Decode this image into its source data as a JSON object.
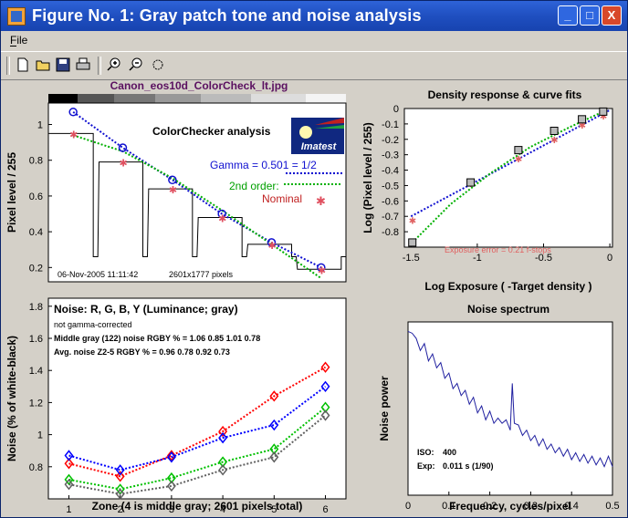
{
  "window": {
    "title": "Figure No. 1: Gray patch tone and noise analysis",
    "buttons": {
      "minimize": "_",
      "maximize": "□",
      "close": "X"
    }
  },
  "menu": {
    "file": "File"
  },
  "toolbar": {
    "icons": [
      "new-icon",
      "open-icon",
      "save-icon",
      "print-icon",
      "zoom-in-icon",
      "zoom-out-icon",
      "rotate-icon"
    ]
  },
  "tone_plot": {
    "image_title": "Canon_eos10d_ColorCheck_lt.jpg",
    "heading": "ColorChecker analysis",
    "logo_text": "Imatest",
    "gamma_label": "Gamma = 0.501 = 1/2",
    "second_order_label": "2nd order:",
    "nominal_label": "Nominal",
    "ylabel": "Pixel level / 255",
    "yticks": [
      "1",
      "0.8",
      "0.6",
      "0.4",
      "0.2"
    ],
    "footer_date": "06-Nov-2005 11:11:42",
    "footer_pixels": "2601x1777 pixels"
  },
  "noise_plot": {
    "heading": "Noise: R, G, B, Y (Luminance; gray)",
    "note": "not gamma-corrected",
    "line1": "Middle gray (122) noise RGBY % = 1.06  0.85  1.01  0.78",
    "line2": "Avg. noise Z2-5 RGBY % = 0.96  0.78  0.92  0.73",
    "ylabel": "Noise (% of white-black)",
    "xlabel": "Zone  (4 is middle gray;  2601 pixels total)",
    "yticks": [
      "1.8",
      "1.6",
      "1.4",
      "1.2",
      "1",
      "0.8"
    ],
    "xticks": [
      "1",
      "2",
      "3",
      "4",
      "5",
      "6"
    ]
  },
  "density_plot": {
    "title": "Density response & curve fits",
    "xlabel": "Log Exposure ( -Target density )",
    "ylabel": "Log (Pixel level / 255)",
    "annotation": "Exposure error = 0.21 f-stops",
    "xticks": [
      "-1.5",
      "-1",
      "-0.5",
      "0"
    ],
    "yticks": [
      "0",
      "-0.1",
      "-0.2",
      "-0.3",
      "-0.4",
      "-0.5",
      "-0.6",
      "-0.7",
      "-0.8"
    ]
  },
  "spectrum_plot": {
    "title": "Noise spectrum",
    "xlabel": "Frequency, cycles/pixel",
    "ylabel": "Noise power",
    "iso_label": "ISO:",
    "iso_value": "400",
    "exp_label": "Exp:",
    "exp_value": "0.011 s  (1/90)",
    "xticks": [
      "0",
      "0.1",
      "0.2",
      "0.3",
      "0.4",
      "0.5"
    ]
  },
  "chart_data": [
    {
      "type": "line",
      "title": "",
      "xlabel": "",
      "ylabel": "Pixel level / 255",
      "ylim": [
        0.12,
        1.12
      ],
      "series": [
        {
          "name": "Gamma = 0.501 = 1/2",
          "x": [
            1,
            2,
            3,
            4,
            5,
            6
          ],
          "values": [
            1.07,
            0.87,
            0.69,
            0.5,
            0.34,
            0.2
          ]
        },
        {
          "name": "2nd order:",
          "x": [
            1,
            2,
            3,
            4,
            5,
            6
          ],
          "values": [
            0.94,
            0.85,
            0.7,
            0.52,
            0.33,
            0.14
          ]
        },
        {
          "name": "Nominal",
          "x": [
            1,
            2,
            3,
            4,
            5,
            6
          ],
          "values": [
            0.95,
            0.79,
            0.64,
            0.48,
            0.33,
            0.19
          ]
        }
      ]
    },
    {
      "type": "line",
      "title": "",
      "xlabel": "Zone  (4 is middle gray;  2601 pixels total)",
      "ylabel": "Noise (% of white-black)",
      "x": [
        1,
        2,
        3,
        4,
        5,
        6
      ],
      "ylim": [
        0.6,
        1.85
      ],
      "colors": [
        "#ff0000",
        "#00c000",
        "#0000ff",
        "#606060"
      ],
      "series": [
        {
          "values": [
            0.82,
            0.74,
            0.87,
            1.02,
            1.24,
            1.42
          ]
        },
        {
          "values": [
            0.72,
            0.66,
            0.73,
            0.83,
            0.91,
            1.17
          ]
        },
        {
          "values": [
            0.87,
            0.78,
            0.86,
            0.98,
            1.06,
            1.3
          ]
        },
        {
          "values": [
            0.69,
            0.63,
            0.68,
            0.78,
            0.86,
            1.12
          ]
        }
      ]
    },
    {
      "type": "scatter",
      "title": "Density response & curve fits",
      "xlabel": "Log Exposure ( -Target density )",
      "ylabel": "Log (Pixel level / 255)",
      "xlim": [
        -1.5,
        0
      ],
      "ylim": [
        -0.9,
        0
      ],
      "points": {
        "x": [
          -1.49,
          -1.05,
          -0.69,
          -0.42,
          -0.21,
          -0.05
        ],
        "y": [
          -0.87,
          -0.48,
          -0.27,
          -0.145,
          -0.07,
          -0.02
        ]
      },
      "nominal": {
        "x": [
          -1.49,
          -1.05,
          -0.69,
          -0.42,
          -0.21,
          -0.05
        ],
        "y": [
          -0.72,
          -0.48,
          -0.32,
          -0.195,
          -0.1,
          -0.04
        ]
      },
      "fit_linear": {
        "x": [
          -1.5,
          0
        ],
        "y": [
          -0.7,
          -0.01
        ]
      },
      "fit_quadratic": {
        "x": [
          -1.49,
          -1.2,
          -0.9,
          -0.6,
          -0.3,
          -0.05
        ],
        "y": [
          -0.87,
          -0.62,
          -0.42,
          -0.25,
          -0.12,
          -0.02
        ]
      }
    },
    {
      "type": "line",
      "title": "Noise spectrum",
      "xlabel": "Frequency, cycles/pixel",
      "ylabel": "Noise power",
      "xlim": [
        0,
        0.5
      ],
      "ylim": [
        0,
        1
      ],
      "series": [
        {
          "x": [
            0.0,
            0.01,
            0.02,
            0.03,
            0.04,
            0.05,
            0.06,
            0.07,
            0.08,
            0.09,
            0.1,
            0.11,
            0.12,
            0.13,
            0.14,
            0.15,
            0.16,
            0.17,
            0.18,
            0.19,
            0.2,
            0.21,
            0.22,
            0.23,
            0.24,
            0.25,
            0.255,
            0.26,
            0.27,
            0.28,
            0.29,
            0.3,
            0.31,
            0.32,
            0.33,
            0.34,
            0.35,
            0.36,
            0.37,
            0.38,
            0.39,
            0.4,
            0.41,
            0.42,
            0.43,
            0.44,
            0.45,
            0.46,
            0.47,
            0.48,
            0.49,
            0.5
          ],
          "values": [
            0.92,
            0.96,
            0.88,
            0.86,
            0.85,
            0.8,
            0.79,
            0.76,
            0.74,
            0.7,
            0.68,
            0.64,
            0.62,
            0.6,
            0.58,
            0.55,
            0.54,
            0.5,
            0.49,
            0.46,
            0.46,
            0.44,
            0.42,
            0.44,
            0.41,
            0.4,
            0.62,
            0.44,
            0.38,
            0.37,
            0.35,
            0.34,
            0.32,
            0.31,
            0.3,
            0.29,
            0.27,
            0.27,
            0.25,
            0.25,
            0.24,
            0.23,
            0.22,
            0.22,
            0.21,
            0.21,
            0.2,
            0.2,
            0.19,
            0.19,
            0.2,
            0.19
          ]
        }
      ]
    }
  ]
}
